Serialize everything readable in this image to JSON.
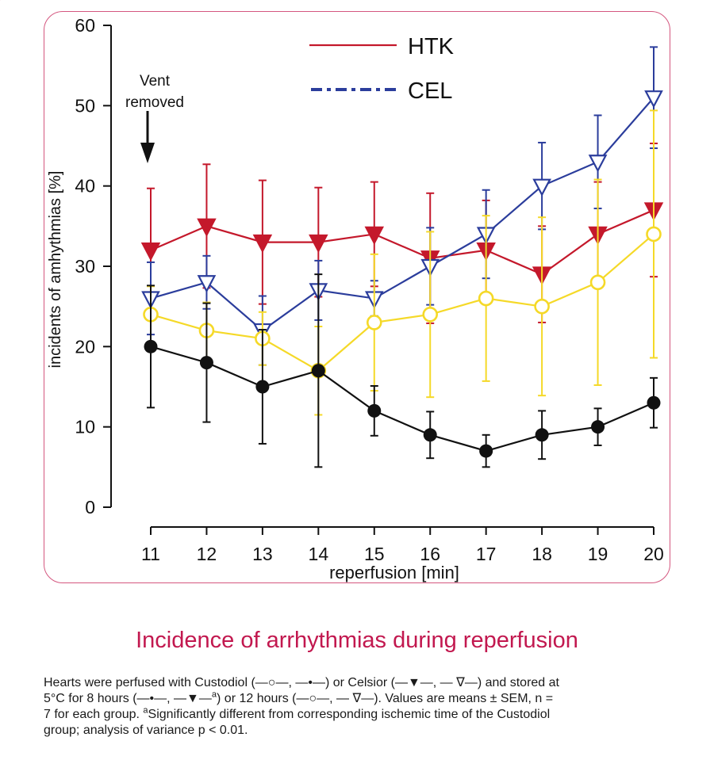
{
  "chart_data": {
    "type": "line",
    "title": "Incidence of arrhythmias during reperfusion",
    "xlabel": "reperfusion [min]",
    "ylabel": "incidents of amhythmias [%]",
    "x": [
      11,
      12,
      13,
      14,
      15,
      16,
      17,
      18,
      19,
      20
    ],
    "xlim": [
      11,
      20
    ],
    "ylim": [
      0,
      60
    ],
    "yticks": [
      0,
      10,
      20,
      30,
      40,
      50,
      60
    ],
    "legend": {
      "position": "top-center",
      "entries": [
        {
          "label": "HTK",
          "color": "#c4182b",
          "style": "solid"
        },
        {
          "label": "CEL",
          "color": "#2b3d9c",
          "style": "dash-dot"
        }
      ]
    },
    "annotation": {
      "text_line1": "Vent",
      "text_line2": "removed",
      "x": 11
    },
    "series": [
      {
        "color": "#c4182b",
        "marker": "triangle-down-filled",
        "values": [
          32,
          35,
          33,
          33,
          34,
          31,
          32,
          29,
          34,
          37
        ],
        "errors": [
          7.7,
          7.7,
          7.7,
          6.8,
          6.5,
          8.1,
          6.2,
          6.0,
          6.5,
          8.3
        ]
      },
      {
        "color": "#2b3d9c",
        "marker": "triangle-down-open",
        "values": [
          26,
          28,
          22,
          27,
          26,
          30,
          34,
          40,
          43,
          51
        ],
        "errors": [
          4.5,
          3.3,
          4.3,
          3.7,
          2.2,
          4.8,
          5.5,
          5.4,
          5.8,
          6.3
        ]
      },
      {
        "color": "#f5d928",
        "marker": "circle-open",
        "values": [
          24,
          22,
          21,
          17,
          23,
          24,
          26,
          25,
          28,
          34
        ],
        "errors": [
          3.5,
          3.5,
          3.3,
          5.5,
          8.5,
          10.3,
          10.3,
          11.1,
          12.8,
          15.4
        ]
      },
      {
        "color": "#111111",
        "marker": "circle-filled",
        "values": [
          20,
          18,
          15,
          17,
          12,
          9,
          7,
          9,
          10,
          13
        ],
        "errors": [
          7.6,
          7.4,
          7.1,
          12.0,
          3.1,
          2.9,
          2.0,
          3.0,
          2.3,
          3.1
        ]
      }
    ]
  },
  "caption": {
    "line1": "Hearts were perfused with Custodiol (—○—, —•—) or Celsior (—▼—, — ∇—) and stored at",
    "line2_a": "5°C for 8 hours (—•—, —▼—",
    "line2_sup": "a",
    "line2_b": ") or 12 hours (—○—, — ∇—). Values are means ± SEM, n =",
    "line3_sup": "a",
    "line3_a": "7 for each group. ",
    "line3_b": "Significantly different from corresponding ischemic time of the Custodiol",
    "line4": "group; analysis of variance p < 0.01."
  }
}
